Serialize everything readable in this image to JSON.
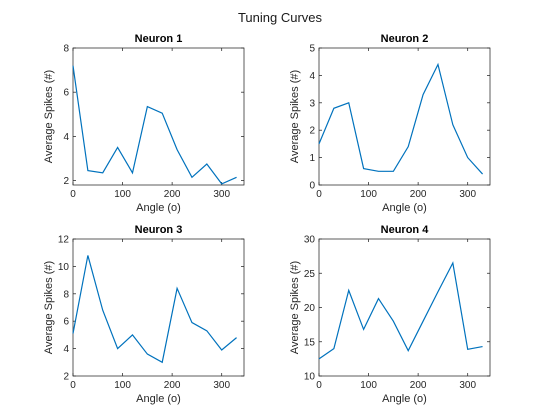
{
  "figure": {
    "suptitle": "Tuning Curves"
  },
  "chart_data": [
    {
      "type": "line",
      "title": "Neuron 1",
      "xlabel": "Angle (o)",
      "ylabel": "Average Spikes (#)",
      "xlim": [
        0,
        345
      ],
      "ylim": [
        1.8,
        8
      ],
      "xticks": [
        0,
        100,
        200,
        300
      ],
      "yticks": [
        2,
        4,
        6,
        8
      ],
      "color": "#0072BD",
      "series": [
        {
          "x": [
            0,
            30,
            60,
            90,
            120,
            150,
            180,
            210,
            240,
            270,
            300,
            330
          ],
          "y": [
            7.2,
            2.45,
            2.35,
            3.5,
            2.35,
            5.35,
            5.05,
            3.4,
            2.15,
            2.75,
            1.85,
            2.15
          ]
        }
      ]
    },
    {
      "type": "line",
      "title": "Neuron 2",
      "xlabel": "Angle (o)",
      "ylabel": "Average Spikes (#)",
      "xlim": [
        0,
        345
      ],
      "ylim": [
        0,
        5
      ],
      "xticks": [
        0,
        100,
        200,
        300
      ],
      "yticks": [
        0,
        1,
        2,
        3,
        4,
        5
      ],
      "color": "#0072BD",
      "series": [
        {
          "x": [
            0,
            30,
            60,
            90,
            120,
            150,
            180,
            210,
            240,
            270,
            300,
            330
          ],
          "y": [
            1.5,
            2.8,
            3.0,
            0.6,
            0.5,
            0.5,
            1.4,
            3.3,
            4.4,
            2.2,
            1.0,
            0.4
          ]
        }
      ]
    },
    {
      "type": "line",
      "title": "Neuron 3",
      "xlabel": "Angle (o)",
      "ylabel": "Average Spikes (#)",
      "xlim": [
        0,
        345
      ],
      "ylim": [
        2,
        12
      ],
      "xticks": [
        0,
        100,
        200,
        300
      ],
      "yticks": [
        2,
        4,
        6,
        8,
        10,
        12
      ],
      "color": "#0072BD",
      "series": [
        {
          "x": [
            0,
            30,
            60,
            90,
            120,
            150,
            180,
            210,
            240,
            270,
            300,
            330
          ],
          "y": [
            5.1,
            10.8,
            6.8,
            4.0,
            5.0,
            3.6,
            3.0,
            8.4,
            5.9,
            5.3,
            3.9,
            4.8
          ]
        }
      ]
    },
    {
      "type": "line",
      "title": "Neuron 4",
      "xlabel": "Angle (o)",
      "ylabel": "Average Spikes (#)",
      "xlim": [
        0,
        345
      ],
      "ylim": [
        10,
        30
      ],
      "xticks": [
        0,
        100,
        200,
        300
      ],
      "yticks": [
        10,
        15,
        20,
        25,
        30
      ],
      "color": "#0072BD",
      "series": [
        {
          "x": [
            0,
            30,
            60,
            90,
            120,
            150,
            180,
            210,
            240,
            270,
            300,
            330
          ],
          "y": [
            12.5,
            14.0,
            22.5,
            16.8,
            21.3,
            18.0,
            13.7,
            18.0,
            22.3,
            26.5,
            13.9,
            14.3
          ]
        }
      ]
    }
  ]
}
